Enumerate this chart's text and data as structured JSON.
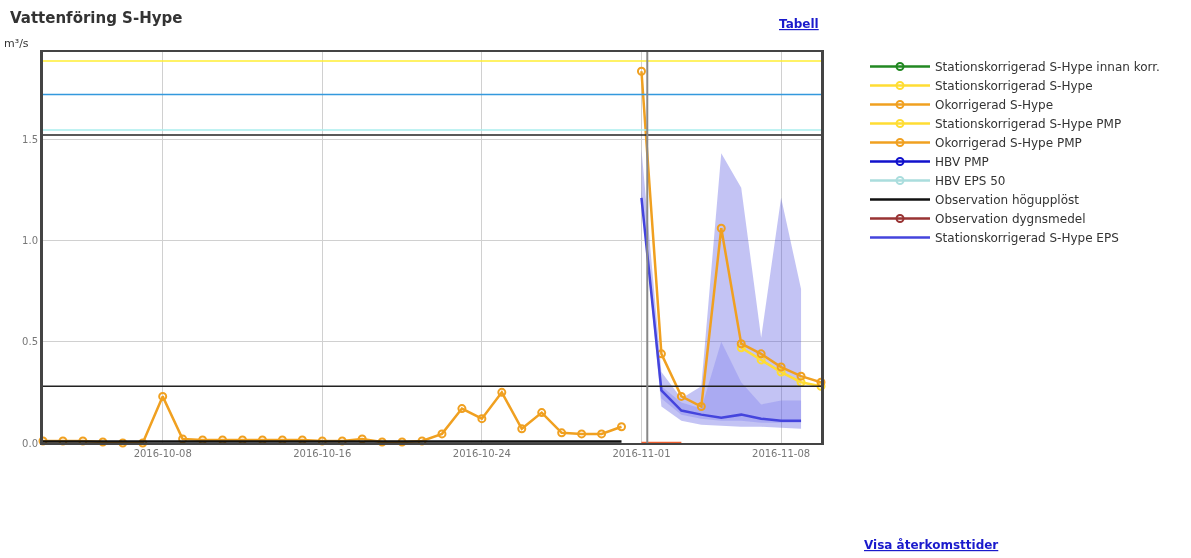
{
  "chart_data": {
    "type": "line",
    "title": "Vattenföring S-Hype",
    "ylabel": "m³/s",
    "annotations": [
      "Tabell",
      "Visa återkomsttider"
    ],
    "xlim": [
      "2016-10-02",
      "2016-11-10"
    ],
    "xticks": [
      "2016-10-08",
      "2016-10-16",
      "2016-10-24",
      "2016-11-01",
      "2016-11-08"
    ],
    "ylim": [
      0,
      1.93
    ],
    "yticks": [
      {
        "value": 0,
        "label": "0.0"
      },
      {
        "value": 0.5,
        "label": "0.5"
      },
      {
        "value": 1,
        "label": "1.0"
      },
      {
        "value": 1.5,
        "label": "1.5"
      }
    ],
    "grid": true,
    "legend": "right",
    "marker": "circle",
    "line_style": "solid",
    "ref_lines": [
      {
        "axis": "y",
        "value": 1.885,
        "color": "#ffee33"
      },
      {
        "axis": "y",
        "value": 1.72,
        "color": "#3399dd"
      },
      {
        "axis": "y",
        "value": 1.545,
        "color": "#aaeeee"
      },
      {
        "axis": "y",
        "value": 1.52,
        "color": "#222222"
      },
      {
        "axis": "y",
        "value": 0.28,
        "color": "#222222"
      },
      {
        "axis": "x",
        "value": "2016-11-01T07:00",
        "color": "#888888"
      }
    ],
    "series": [
      {
        "name": "Stationskorrigerad S-Hype innan korr.",
        "color": "#228822"
      },
      {
        "name": "Stationskorrigerad S-Hype",
        "color": "#ffdd33",
        "x": [
          "2016-11-06",
          "2016-11-07",
          "2016-11-08",
          "2016-11-09",
          "2016-11-10"
        ],
        "values": [
          0.47,
          0.41,
          0.35,
          0.3,
          0.28
        ]
      },
      {
        "name": "Okorrigerad S-Hype",
        "color": "#f0a020",
        "x": [
          "2016-10-02",
          "2016-10-03",
          "2016-10-04",
          "2016-10-05",
          "2016-10-06",
          "2016-10-07",
          "2016-10-08",
          "2016-10-09",
          "2016-10-10",
          "2016-10-11",
          "2016-10-12",
          "2016-10-13",
          "2016-10-14",
          "2016-10-15",
          "2016-10-16",
          "2016-10-17",
          "2016-10-18",
          "2016-10-19",
          "2016-10-20",
          "2016-10-21",
          "2016-10-22",
          "2016-10-23",
          "2016-10-24",
          "2016-10-25",
          "2016-10-26",
          "2016-10-27",
          "2016-10-28",
          "2016-10-29",
          "2016-10-30",
          "2016-10-31",
          "2016-10-31T12:00",
          "2016-11-01",
          "2016-11-02",
          "2016-11-03",
          "2016-11-04",
          "2016-11-05",
          "2016-11-06",
          "2016-11-07",
          "2016-11-08",
          "2016-11-09",
          "2016-11-10"
        ],
        "values": [
          0.01,
          0.01,
          0.01,
          0.005,
          0,
          0,
          0.23,
          0.02,
          0.015,
          0.015,
          0.015,
          0.015,
          0.015,
          0.015,
          0.01,
          0.01,
          0.02,
          0.005,
          0.005,
          0.01,
          0.045,
          0.17,
          0.12,
          0.25,
          0.07,
          0.15,
          0.05,
          0.045,
          0.045,
          0.08,
          null,
          1.835,
          0.44,
          0.23,
          0.18,
          1.06,
          0.49,
          0.44,
          0.375,
          0.33,
          0.3
        ]
      },
      {
        "name": "Stationskorrigerad S-Hype PMP",
        "color": "#ffdd33"
      },
      {
        "name": "Okorrigerad S-Hype PMP",
        "color": "#f0a020"
      },
      {
        "name": "HBV PMP",
        "color": "#1111cc"
      },
      {
        "name": "HBV EPS 50",
        "color": "#aadddd"
      },
      {
        "name": "Observation högupplöst",
        "color": "#111111",
        "marker": "none",
        "x": [
          "2016-10-02",
          "2016-10-10",
          "2016-10-20",
          "2016-10-31"
        ],
        "values": [
          0.008,
          0.008,
          0.008,
          0.008
        ]
      },
      {
        "name": "Observation dygnsmedel",
        "color": "#993333"
      },
      {
        "name": "Stationskorrigerad S-Hype EPS",
        "color": "#4444dd",
        "marker": "none",
        "x": [
          "2016-11-01",
          "2016-11-02",
          "2016-11-03",
          "2016-11-04",
          "2016-11-05",
          "2016-11-06",
          "2016-11-07",
          "2016-11-08",
          "2016-11-09"
        ],
        "values": [
          1.21,
          0.26,
          0.16,
          0.14,
          0.125,
          0.14,
          0.12,
          0.11,
          0.11
        ],
        "lower": [
          1.2,
          0.18,
          0.11,
          0.09,
          0.085,
          0.08,
          0.08,
          0.075,
          0.07
        ],
        "upper": [
          1.45,
          0.35,
          0.22,
          0.28,
          1.43,
          1.26,
          0.52,
          1.21,
          0.76
        ]
      },
      {
        "color": "#7777ee",
        "marker": "none",
        "x": [
          "2016-11-01",
          "2016-11-02",
          "2016-11-03",
          "2016-11-04",
          "2016-11-05",
          "2016-11-06",
          "2016-11-07",
          "2016-11-08",
          "2016-11-09"
        ],
        "values": [
          null,
          null,
          null,
          null,
          null,
          null,
          null,
          null,
          null
        ],
        "lower": [
          1.2,
          0.22,
          0.14,
          0.12,
          0.11,
          0.11,
          0.1,
          0.1,
          0.1
        ],
        "upper": [
          1.25,
          0.28,
          0.2,
          0.17,
          0.5,
          0.3,
          0.19,
          0.21,
          0.21
        ]
      },
      {
        "color": "#f06030",
        "marker": "none",
        "x": [
          "2016-11-01",
          "2016-11-03"
        ],
        "values": [
          0,
          0
        ]
      }
    ]
  }
}
